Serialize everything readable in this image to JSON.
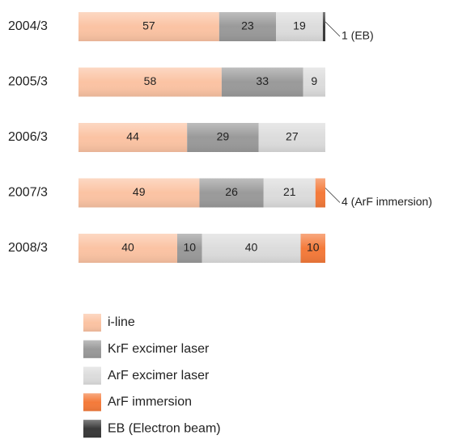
{
  "chart_data": {
    "type": "stacked-barh",
    "categories": [
      "2004/3",
      "2005/3",
      "2006/3",
      "2007/3",
      "2008/3"
    ],
    "xlim": [
      0,
      100
    ],
    "series": [
      {
        "name": "i-line",
        "color": "#fbc3a3",
        "values": [
          57,
          58,
          44,
          49,
          40
        ]
      },
      {
        "name": "KrF excimer laser",
        "color": "#9a9a9a",
        "values": [
          23,
          33,
          29,
          26,
          10
        ]
      },
      {
        "name": "ArF excimer laser",
        "color": "#dcdcdc",
        "values": [
          19,
          9,
          27,
          21,
          40
        ]
      },
      {
        "name": "ArF immersion",
        "color": "#f47a3a",
        "values": [
          null,
          null,
          null,
          4,
          10
        ],
        "value_labels": [
          null,
          null,
          null,
          "4 (ArF immersion)",
          "10"
        ]
      },
      {
        "name": "EB (Electron beam)",
        "color": "#3a3a3a",
        "values": [
          1,
          null,
          null,
          null,
          null
        ],
        "value_labels": [
          "1 (EB)",
          null,
          null,
          null,
          null
        ]
      }
    ]
  }
}
